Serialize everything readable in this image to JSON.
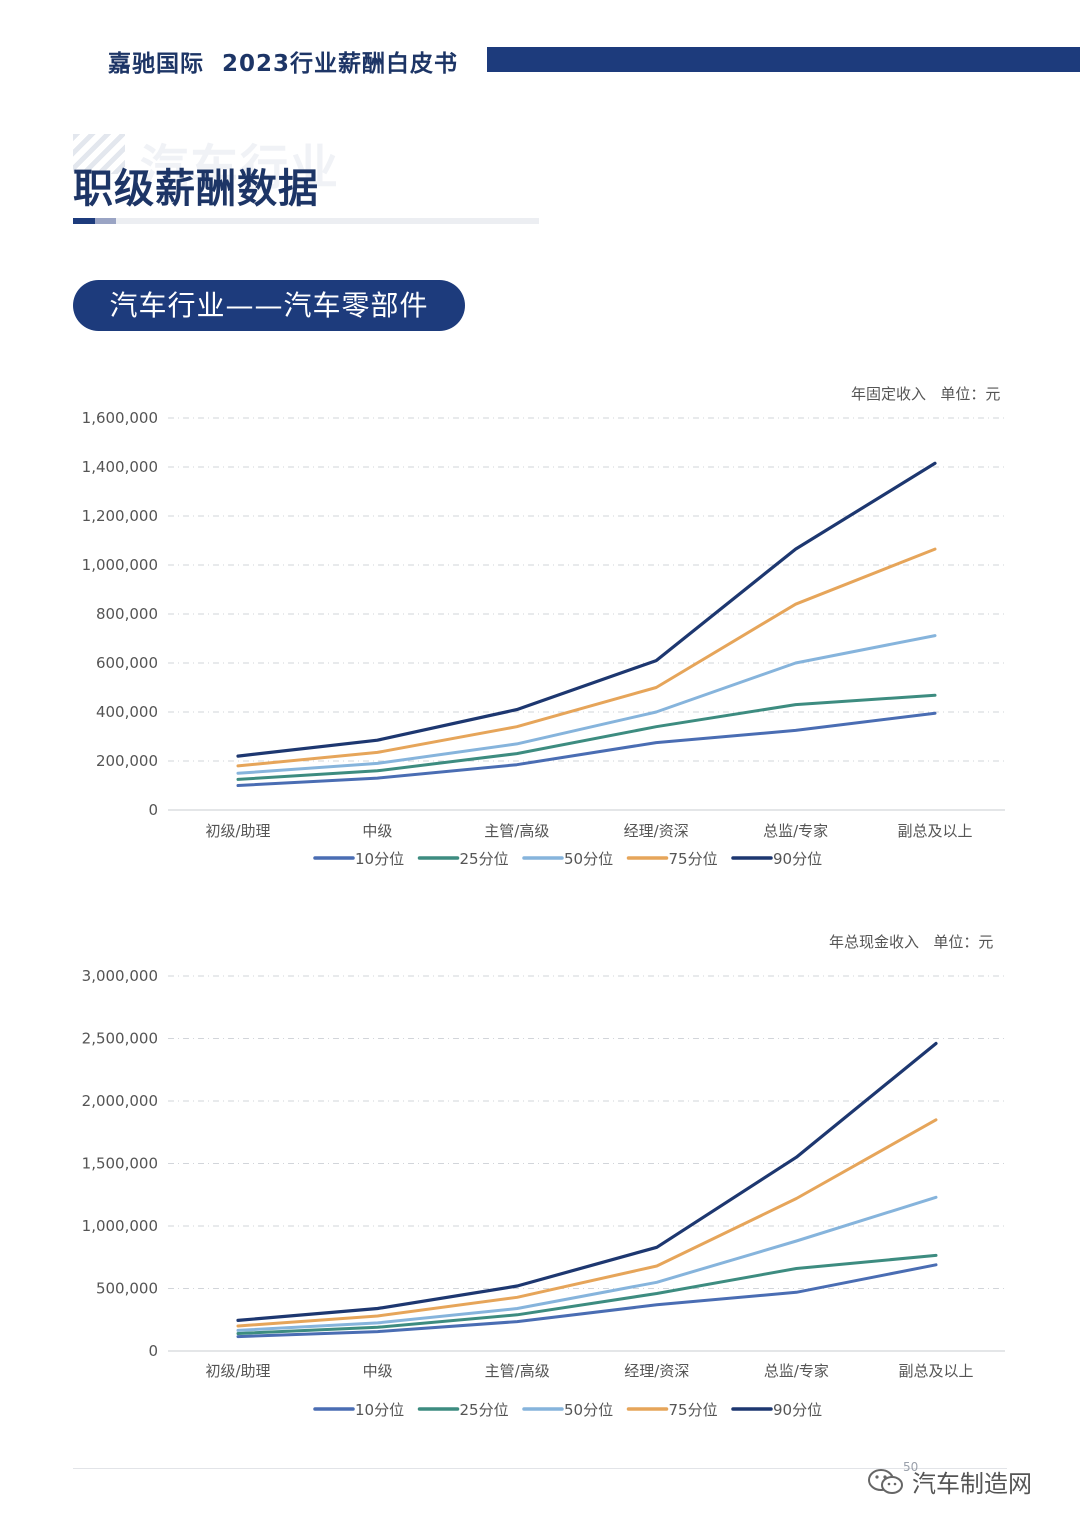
{
  "header": {
    "brand": "嘉驰国际",
    "doc_title": "2023行业薪酬白皮书"
  },
  "section": {
    "ghost_text": "汽车行业",
    "title": "职级薪酬数据",
    "subtitle": "汽车行业——汽车零部件"
  },
  "footer": {
    "page_number": "50",
    "watermark": "汽车制造网"
  },
  "colors": {
    "p10": "#4a6db3",
    "p25": "#3d8c80",
    "p50": "#86b4dc",
    "p75": "#e6a55a",
    "p90": "#1d3770",
    "navy": "#1d3b7c"
  },
  "chart_data": [
    {
      "type": "line",
      "title": "年固定收入",
      "unit_label": "单位：元",
      "categories": [
        "初级/助理",
        "中级",
        "主管/高级",
        "经理/资深",
        "总监/专家",
        "副总及以上"
      ],
      "ylim": [
        0,
        1600000
      ],
      "yticks": [
        0,
        200000,
        400000,
        600000,
        800000,
        1000000,
        1200000,
        1400000,
        1600000
      ],
      "ytick_labels": [
        "0",
        "200,000",
        "400,000",
        "600,000",
        "800,000",
        "1,000,000",
        "1,200,000",
        "1,400,000",
        "1,600,000"
      ],
      "grid": true,
      "legend": "bottom",
      "series": [
        {
          "name": "10分位",
          "values": [
            100000,
            130000,
            185000,
            275000,
            325000,
            395000
          ]
        },
        {
          "name": "25分位",
          "values": [
            125000,
            160000,
            230000,
            340000,
            430000,
            468000
          ]
        },
        {
          "name": "50分位",
          "values": [
            150000,
            190000,
            270000,
            400000,
            600000,
            712000
          ]
        },
        {
          "name": "75分位",
          "values": [
            180000,
            235000,
            340000,
            500000,
            840000,
            1065000
          ]
        },
        {
          "name": "90分位",
          "values": [
            220000,
            285000,
            410000,
            610000,
            1065000,
            1415000
          ]
        }
      ]
    },
    {
      "type": "line",
      "title": "年总现金收入",
      "unit_label": "单位：元",
      "categories": [
        "初级/助理",
        "中级",
        "主管/高级",
        "经理/资深",
        "总监/专家",
        "副总及以上"
      ],
      "ylim": [
        0,
        3000000
      ],
      "yticks": [
        0,
        500000,
        1000000,
        1500000,
        2000000,
        2500000,
        3000000
      ],
      "ytick_labels": [
        "0",
        "500,000",
        "1,000,000",
        "1,500,000",
        "2,000,000",
        "2,500,000",
        "3,000,000"
      ],
      "grid": true,
      "legend": "bottom",
      "series": [
        {
          "name": "10分位",
          "values": [
            115000,
            155000,
            235000,
            370000,
            470000,
            690000
          ]
        },
        {
          "name": "25分位",
          "values": [
            140000,
            190000,
            290000,
            460000,
            660000,
            765000
          ]
        },
        {
          "name": "50分位",
          "values": [
            165000,
            225000,
            340000,
            550000,
            880000,
            1230000
          ]
        },
        {
          "name": "75分位",
          "values": [
            200000,
            280000,
            430000,
            680000,
            1220000,
            1850000
          ]
        },
        {
          "name": "90分位",
          "values": [
            245000,
            340000,
            520000,
            830000,
            1550000,
            2460000
          ]
        }
      ]
    }
  ]
}
